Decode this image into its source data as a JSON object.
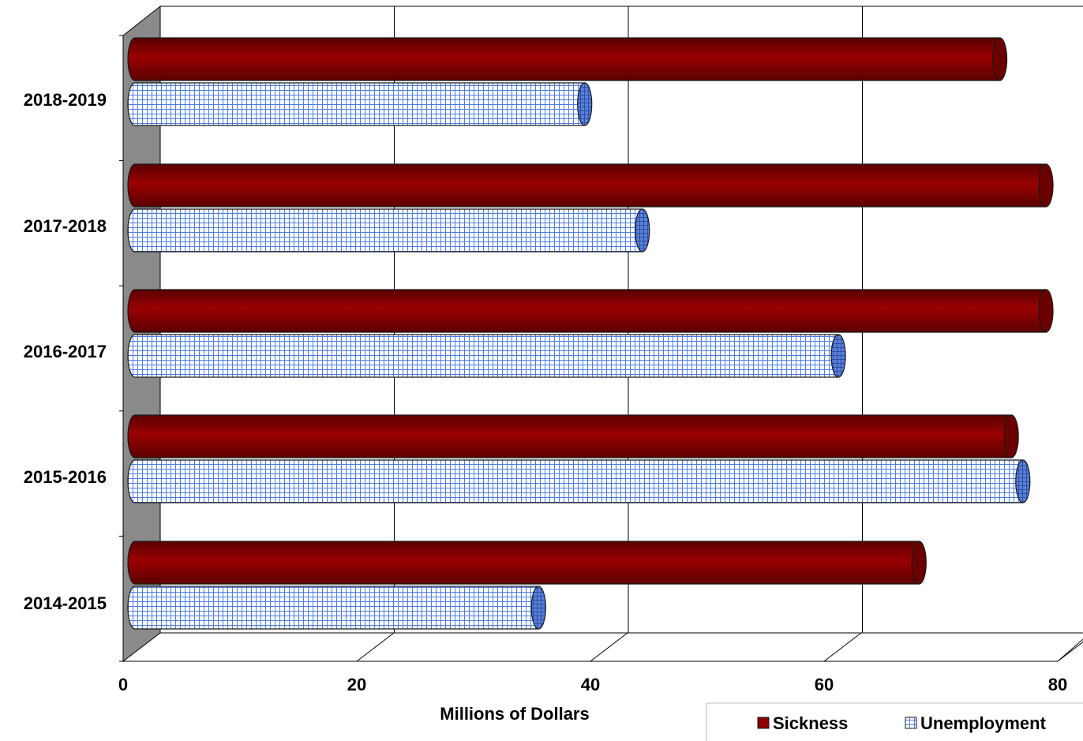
{
  "chart_data": {
    "type": "bar",
    "orientation": "horizontal",
    "style": "3d-cylinder",
    "categories": [
      "2018-2019",
      "2017-2018",
      "2016-2017",
      "2015-2016",
      "2014-2015"
    ],
    "series": [
      {
        "name": "Sickness",
        "values": [
          75,
          79,
          79,
          76,
          68
        ],
        "color": "#8b0000"
      },
      {
        "name": "Unemployment",
        "values": [
          39,
          44,
          61,
          77,
          35
        ],
        "color": "#7fa2ea",
        "pattern": "grid"
      }
    ],
    "xlabel": "Millions of Dollars",
    "xlim": [
      0,
      80
    ],
    "xticks": [
      "0",
      "20",
      "40",
      "60",
      "80"
    ],
    "grid": true,
    "legend_position": "bottom-right"
  }
}
